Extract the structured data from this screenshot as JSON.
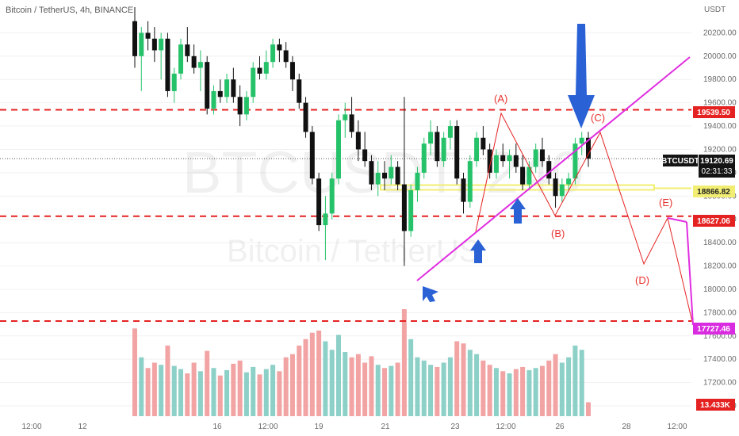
{
  "title": "Bitcoin / TetherUS, 4h, BINANCE",
  "watermark": {
    "symbol": "BTCUSDT, 240",
    "name": "Bitcoin / TetherUS"
  },
  "price_axis": {
    "currency": "USDT",
    "ticks": [
      "20200.00",
      "20000.00",
      "19800.00",
      "19600.00",
      "19400.00",
      "19200.00",
      "19000.00",
      "18800.00",
      "18600.00",
      "18400.00",
      "18200.00",
      "18000.00",
      "17800.00",
      "17600.00",
      "17400.00",
      "17200.00",
      "17000.00"
    ]
  },
  "time_axis": {
    "ticks": [
      "12:00",
      "12",
      "16",
      "12:00",
      "19",
      "21",
      "23",
      "12:00",
      "26",
      "28",
      "12:00"
    ]
  },
  "price_tags": {
    "last_symbol": "BTCUSDT",
    "last_price": "19120.69",
    "countdown": "02:31:33",
    "level_1": "19539.50",
    "level_2": "18866.82",
    "level_3": "18627.06",
    "level_4": "17727.46",
    "volume": "13.433K"
  },
  "annotations": {
    "a": "(A)",
    "b": "(B)",
    "c": "(C)",
    "d": "(D)",
    "e": "(E)"
  },
  "colors": {
    "up": "#26c26a",
    "down": "#111111",
    "vol_up": "#8cd0c7",
    "vol_down": "#f2a3a3",
    "red_line": "#e52222",
    "magenta": "#e02ee0",
    "yellow": "#f2ee73",
    "blue": "#2a62d6",
    "tag_dark": "#141414",
    "tag_red": "#e52222",
    "tag_yellow": "#f2ee73",
    "tag_magenta": "#d92be0"
  },
  "chart_data": {
    "type": "candlestick",
    "title": "Bitcoin / TetherUS, 4h, BINANCE",
    "ylim": [
      17000,
      20400
    ],
    "horizontal_levels": [
      19539.5,
      18866.82,
      18627.06,
      17727.46
    ],
    "last_price": 19120.69,
    "last_volume": "13.433K",
    "candles": [
      {
        "o": 20300,
        "h": 20420,
        "l": 19900,
        "c": 20000,
        "v": 0.82
      },
      {
        "o": 20000,
        "h": 20250,
        "l": 19700,
        "c": 20200,
        "v": 0.55
      },
      {
        "o": 20200,
        "h": 20300,
        "l": 20050,
        "c": 20150,
        "v": 0.45
      },
      {
        "o": 20150,
        "h": 20250,
        "l": 19950,
        "c": 20050,
        "v": 0.5
      },
      {
        "o": 20050,
        "h": 20200,
        "l": 19800,
        "c": 20150,
        "v": 0.48
      },
      {
        "o": 20150,
        "h": 20200,
        "l": 19650,
        "c": 19700,
        "v": 0.66
      },
      {
        "o": 19700,
        "h": 19900,
        "l": 19600,
        "c": 19850,
        "v": 0.47
      },
      {
        "o": 19850,
        "h": 20150,
        "l": 19800,
        "c": 20100,
        "v": 0.44
      },
      {
        "o": 20100,
        "h": 20250,
        "l": 19950,
        "c": 20000,
        "v": 0.4
      },
      {
        "o": 20000,
        "h": 20100,
        "l": 19850,
        "c": 19900,
        "v": 0.5
      },
      {
        "o": 19900,
        "h": 20050,
        "l": 19700,
        "c": 19950,
        "v": 0.42
      },
      {
        "o": 19950,
        "h": 20000,
        "l": 19500,
        "c": 19550,
        "v": 0.61
      },
      {
        "o": 19550,
        "h": 19750,
        "l": 19500,
        "c": 19700,
        "v": 0.45
      },
      {
        "o": 19700,
        "h": 19800,
        "l": 19600,
        "c": 19650,
        "v": 0.38
      },
      {
        "o": 19650,
        "h": 19850,
        "l": 19600,
        "c": 19800,
        "v": 0.43
      },
      {
        "o": 19800,
        "h": 19900,
        "l": 19600,
        "c": 19650,
        "v": 0.49
      },
      {
        "o": 19650,
        "h": 19750,
        "l": 19400,
        "c": 19500,
        "v": 0.52
      },
      {
        "o": 19500,
        "h": 19700,
        "l": 19450,
        "c": 19650,
        "v": 0.41
      },
      {
        "o": 19650,
        "h": 19950,
        "l": 19600,
        "c": 19900,
        "v": 0.46
      },
      {
        "o": 19900,
        "h": 20000,
        "l": 19800,
        "c": 19850,
        "v": 0.39
      },
      {
        "o": 19850,
        "h": 20050,
        "l": 19800,
        "c": 19950,
        "v": 0.44
      },
      {
        "o": 19950,
        "h": 20150,
        "l": 19900,
        "c": 20100,
        "v": 0.48
      },
      {
        "o": 20100,
        "h": 20150,
        "l": 19950,
        "c": 20050,
        "v": 0.42
      },
      {
        "o": 20050,
        "h": 20120,
        "l": 19900,
        "c": 19950,
        "v": 0.55
      },
      {
        "o": 19950,
        "h": 20000,
        "l": 19700,
        "c": 19800,
        "v": 0.58
      },
      {
        "o": 19800,
        "h": 19850,
        "l": 19550,
        "c": 19600,
        "v": 0.66
      },
      {
        "o": 19600,
        "h": 19650,
        "l": 19300,
        "c": 19350,
        "v": 0.72
      },
      {
        "o": 19350,
        "h": 19400,
        "l": 18900,
        "c": 18950,
        "v": 0.78
      },
      {
        "o": 18950,
        "h": 19000,
        "l": 18500,
        "c": 18550,
        "v": 0.8
      },
      {
        "o": 18550,
        "h": 18800,
        "l": 18250,
        "c": 18650,
        "v": 0.7
      },
      {
        "o": 18650,
        "h": 19000,
        "l": 18600,
        "c": 18950,
        "v": 0.62
      },
      {
        "o": 18950,
        "h": 19500,
        "l": 18900,
        "c": 19450,
        "v": 0.76
      },
      {
        "o": 19450,
        "h": 19600,
        "l": 19300,
        "c": 19500,
        "v": 0.6
      },
      {
        "o": 19500,
        "h": 19650,
        "l": 19300,
        "c": 19350,
        "v": 0.55
      },
      {
        "o": 19350,
        "h": 19450,
        "l": 19100,
        "c": 19200,
        "v": 0.58
      },
      {
        "o": 19200,
        "h": 19350,
        "l": 19050,
        "c": 19100,
        "v": 0.5
      },
      {
        "o": 19100,
        "h": 19150,
        "l": 18850,
        "c": 18900,
        "v": 0.56
      },
      {
        "o": 18900,
        "h": 19100,
        "l": 18800,
        "c": 19000,
        "v": 0.48
      },
      {
        "o": 19000,
        "h": 19100,
        "l": 18850,
        "c": 18950,
        "v": 0.45
      },
      {
        "o": 18950,
        "h": 19150,
        "l": 18900,
        "c": 19050,
        "v": 0.47
      },
      {
        "o": 19050,
        "h": 19100,
        "l": 18850,
        "c": 18900,
        "v": 0.5
      },
      {
        "o": 18900,
        "h": 19650,
        "l": 18200,
        "c": 18500,
        "v": 1.0
      },
      {
        "o": 18500,
        "h": 18900,
        "l": 18450,
        "c": 18850,
        "v": 0.72
      },
      {
        "o": 18850,
        "h": 19050,
        "l": 18750,
        "c": 19000,
        "v": 0.55
      },
      {
        "o": 19000,
        "h": 19300,
        "l": 18950,
        "c": 19250,
        "v": 0.52
      },
      {
        "o": 19250,
        "h": 19450,
        "l": 19150,
        "c": 19350,
        "v": 0.48
      },
      {
        "o": 19350,
        "h": 19400,
        "l": 19050,
        "c": 19100,
        "v": 0.46
      },
      {
        "o": 19100,
        "h": 19350,
        "l": 19050,
        "c": 19300,
        "v": 0.5
      },
      {
        "o": 19300,
        "h": 19450,
        "l": 19200,
        "c": 19400,
        "v": 0.55
      },
      {
        "o": 19400,
        "h": 19450,
        "l": 18900,
        "c": 18950,
        "v": 0.7
      },
      {
        "o": 18950,
        "h": 19000,
        "l": 18650,
        "c": 18750,
        "v": 0.68
      },
      {
        "o": 18750,
        "h": 19150,
        "l": 18700,
        "c": 19100,
        "v": 0.62
      },
      {
        "o": 19100,
        "h": 19350,
        "l": 19050,
        "c": 19300,
        "v": 0.58
      },
      {
        "o": 19300,
        "h": 19400,
        "l": 19150,
        "c": 19200,
        "v": 0.52
      },
      {
        "o": 19200,
        "h": 19250,
        "l": 18950,
        "c": 19000,
        "v": 0.48
      },
      {
        "o": 19000,
        "h": 19200,
        "l": 18950,
        "c": 19150,
        "v": 0.45
      },
      {
        "o": 19150,
        "h": 19250,
        "l": 19050,
        "c": 19100,
        "v": 0.42
      },
      {
        "o": 19100,
        "h": 19200,
        "l": 18950,
        "c": 19150,
        "v": 0.4
      },
      {
        "o": 19150,
        "h": 19250,
        "l": 19000,
        "c": 19050,
        "v": 0.44
      },
      {
        "o": 19050,
        "h": 19150,
        "l": 18850,
        "c": 18900,
        "v": 0.46
      },
      {
        "o": 18900,
        "h": 19100,
        "l": 18850,
        "c": 19050,
        "v": 0.43
      },
      {
        "o": 19050,
        "h": 19250,
        "l": 19000,
        "c": 19200,
        "v": 0.45
      },
      {
        "o": 19200,
        "h": 19300,
        "l": 19050,
        "c": 19100,
        "v": 0.47
      },
      {
        "o": 19100,
        "h": 19150,
        "l": 18900,
        "c": 18950,
        "v": 0.52
      },
      {
        "o": 18950,
        "h": 19000,
        "l": 18700,
        "c": 18800,
        "v": 0.58
      },
      {
        "o": 18800,
        "h": 18950,
        "l": 18750,
        "c": 18900,
        "v": 0.5
      },
      {
        "o": 18900,
        "h": 19000,
        "l": 18850,
        "c": 18950,
        "v": 0.55
      },
      {
        "o": 18950,
        "h": 19300,
        "l": 18900,
        "c": 19250,
        "v": 0.66
      },
      {
        "o": 19250,
        "h": 19350,
        "l": 19150,
        "c": 19300,
        "v": 0.62
      },
      {
        "o": 19300,
        "h": 19350,
        "l": 19050,
        "c": 19120.69,
        "v": 0.13
      }
    ]
  }
}
